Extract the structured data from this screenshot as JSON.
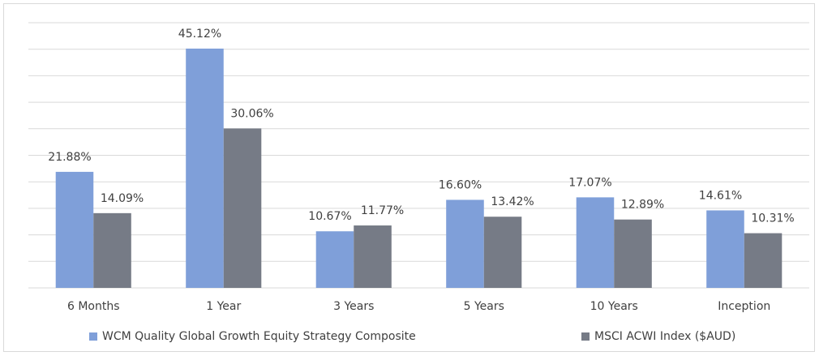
{
  "chart_data": {
    "type": "bar",
    "categories": [
      "6 Months",
      "1 Year",
      "3 Years",
      "5 Years",
      "10 Years",
      "Inception"
    ],
    "series": [
      {
        "name": "WCM Quality Global Growth Equity Strategy Composite",
        "color": "#7f9fd9",
        "values": [
          21.88,
          45.12,
          10.67,
          16.6,
          17.07,
          14.61
        ],
        "value_labels": [
          "21.88%",
          "45.12%",
          "10.67%",
          "16.60%",
          "17.07%",
          "14.61%"
        ]
      },
      {
        "name": "MSCI ACWI Index ($AUD)",
        "color": "#767b86",
        "values": [
          14.09,
          30.06,
          11.77,
          13.42,
          12.89,
          10.31
        ],
        "value_labels": [
          "14.09%",
          "30.06%",
          "11.77%",
          "13.42%",
          "12.89%",
          "10.31%"
        ]
      }
    ],
    "ylim": [
      0,
      50
    ],
    "yticks": [
      0,
      5,
      10,
      15,
      20,
      25,
      30,
      35,
      40,
      45,
      50
    ],
    "grid": true,
    "legend": "bottom"
  }
}
